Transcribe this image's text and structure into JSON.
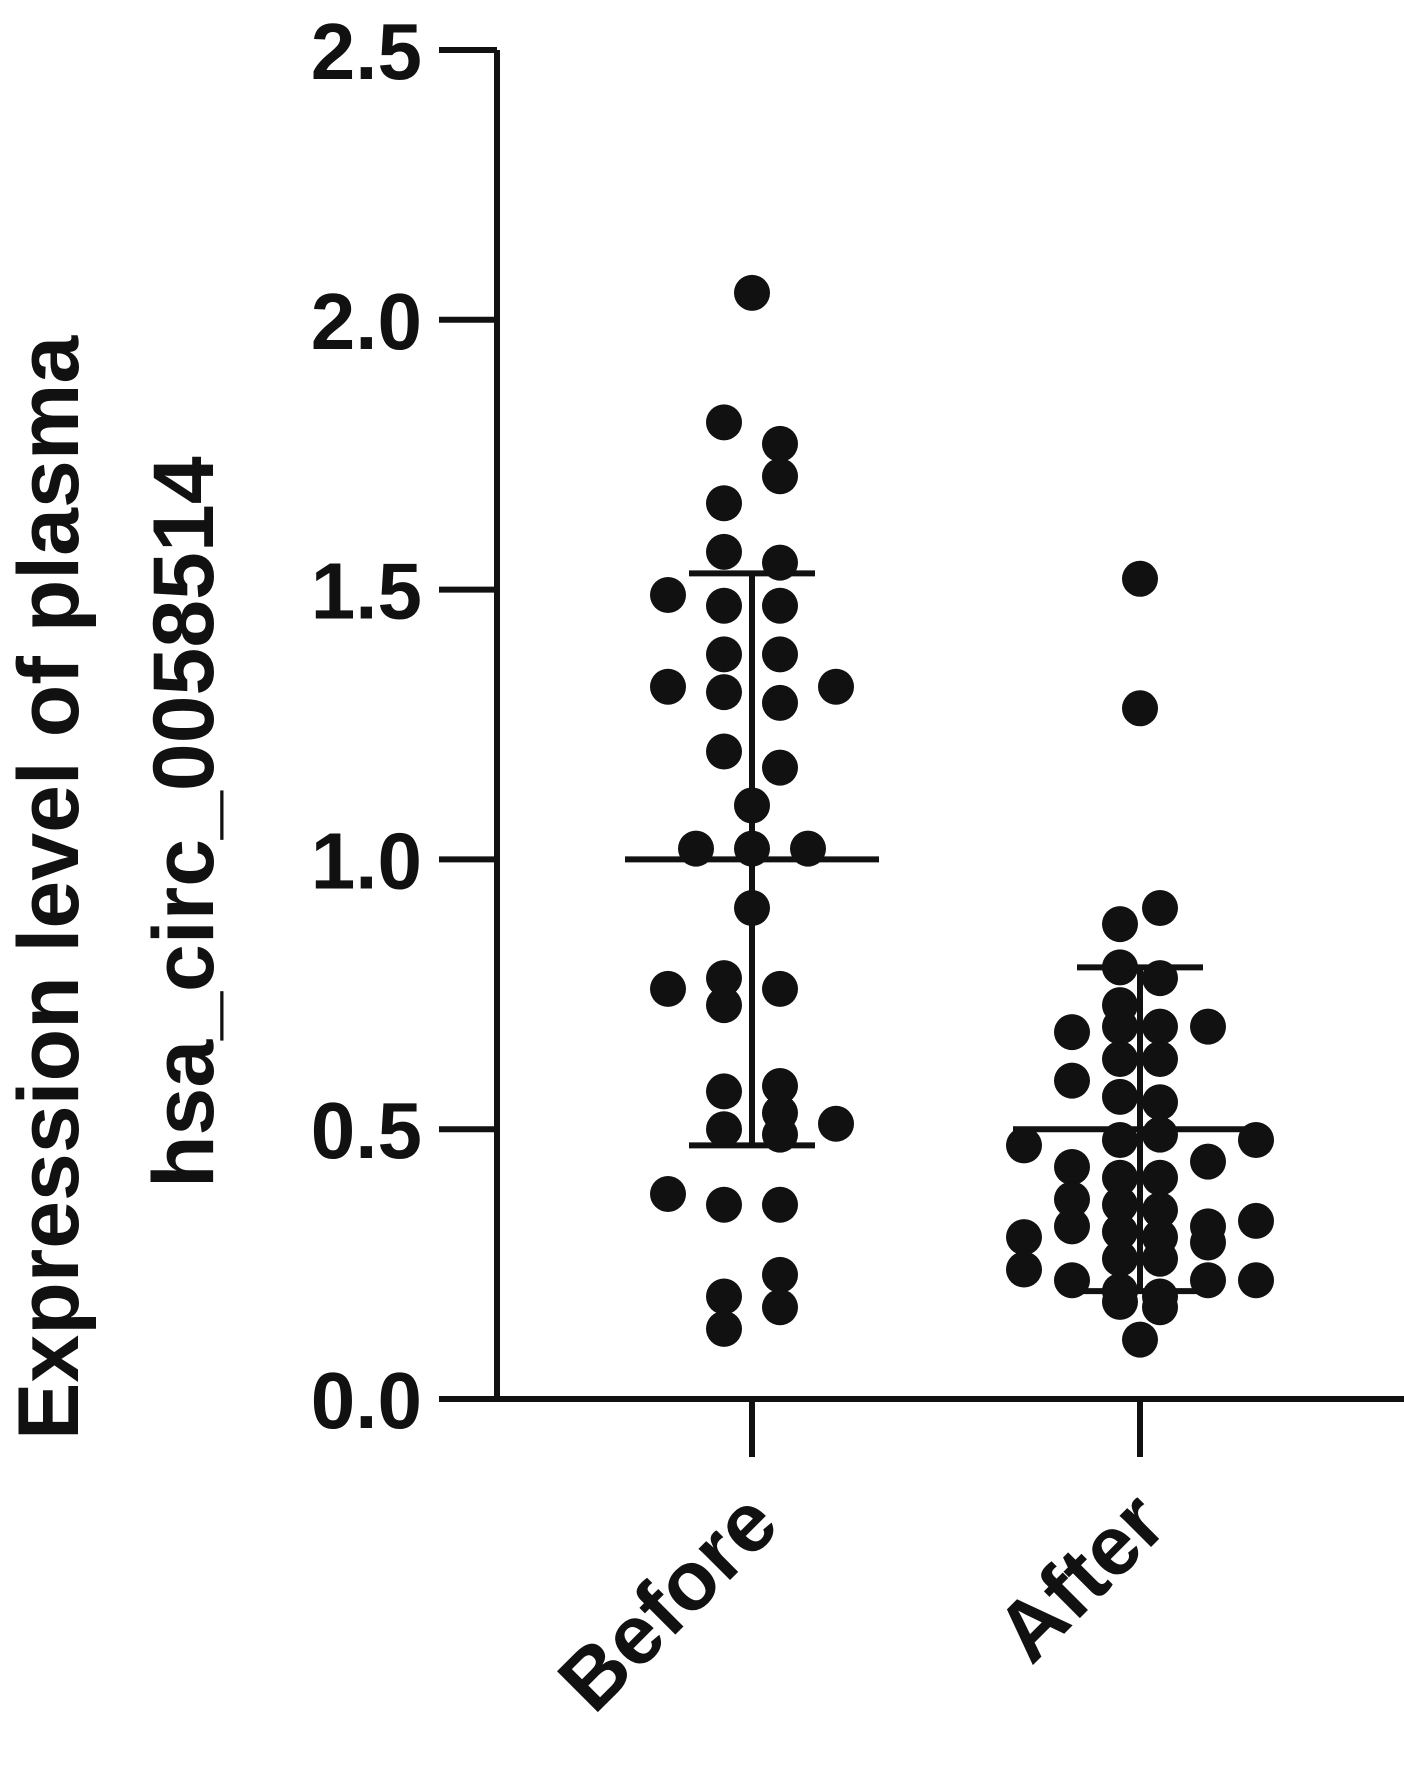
{
  "chart_data": {
    "type": "scatter",
    "title": "",
    "ylabel": [
      "Expression level of plasma",
      "hsa_circ_0058514"
    ],
    "xlabel": "",
    "ylim": [
      0,
      2.5
    ],
    "yticks": [
      0.0,
      0.5,
      1.0,
      1.5,
      2.0,
      2.5
    ],
    "ytick_labels": [
      "0.0",
      "0.5",
      "1.0",
      "1.5",
      "2.0",
      "2.5"
    ],
    "categories": [
      "Before",
      "After"
    ],
    "grid": false,
    "legend": "none",
    "marker_color": "#111111",
    "series": [
      {
        "category": "Before",
        "mean": 1.0,
        "sd_upper": 1.53,
        "sd_lower": 0.47,
        "points": [
          {
            "offset": 0,
            "y": 2.05
          },
          {
            "offset": -0.07,
            "y": 1.81
          },
          {
            "offset": 0.07,
            "y": 1.77
          },
          {
            "offset": 0.07,
            "y": 1.71
          },
          {
            "offset": -0.07,
            "y": 1.66
          },
          {
            "offset": -0.07,
            "y": 1.57
          },
          {
            "offset": 0.07,
            "y": 1.55
          },
          {
            "offset": -0.21,
            "y": 1.49
          },
          {
            "offset": -0.07,
            "y": 1.47
          },
          {
            "offset": 0.07,
            "y": 1.47
          },
          {
            "offset": -0.07,
            "y": 1.38
          },
          {
            "offset": 0.07,
            "y": 1.38
          },
          {
            "offset": -0.21,
            "y": 1.32
          },
          {
            "offset": 0.21,
            "y": 1.32
          },
          {
            "offset": -0.07,
            "y": 1.31
          },
          {
            "offset": 0.07,
            "y": 1.29
          },
          {
            "offset": -0.07,
            "y": 1.2
          },
          {
            "offset": 0.07,
            "y": 1.17
          },
          {
            "offset": 0,
            "y": 1.1
          },
          {
            "offset": -0.14,
            "y": 1.02
          },
          {
            "offset": 0,
            "y": 1.02
          },
          {
            "offset": 0.14,
            "y": 1.02
          },
          {
            "offset": 0,
            "y": 0.91
          },
          {
            "offset": -0.07,
            "y": 0.78
          },
          {
            "offset": -0.21,
            "y": 0.76
          },
          {
            "offset": 0.07,
            "y": 0.76
          },
          {
            "offset": -0.07,
            "y": 0.73
          },
          {
            "offset": -0.07,
            "y": 0.57
          },
          {
            "offset": 0.07,
            "y": 0.58
          },
          {
            "offset": 0.07,
            "y": 0.53
          },
          {
            "offset": 0.21,
            "y": 0.51
          },
          {
            "offset": -0.07,
            "y": 0.5
          },
          {
            "offset": 0.07,
            "y": 0.49
          },
          {
            "offset": -0.21,
            "y": 0.38
          },
          {
            "offset": -0.07,
            "y": 0.36
          },
          {
            "offset": 0.07,
            "y": 0.36
          },
          {
            "offset": 0.07,
            "y": 0.23
          },
          {
            "offset": -0.07,
            "y": 0.19
          },
          {
            "offset": 0.07,
            "y": 0.17
          },
          {
            "offset": -0.07,
            "y": 0.13
          }
        ]
      },
      {
        "category": "After",
        "mean": 0.5,
        "sd_upper": 0.8,
        "sd_lower": 0.2,
        "points": [
          {
            "offset": 0,
            "y": 1.52
          },
          {
            "offset": 0,
            "y": 1.28
          },
          {
            "offset": 0.05,
            "y": 0.91
          },
          {
            "offset": -0.05,
            "y": 0.88
          },
          {
            "offset": -0.05,
            "y": 0.8
          },
          {
            "offset": 0.05,
            "y": 0.78
          },
          {
            "offset": -0.05,
            "y": 0.73
          },
          {
            "offset": -0.17,
            "y": 0.68
          },
          {
            "offset": 0.17,
            "y": 0.69
          },
          {
            "offset": -0.05,
            "y": 0.69
          },
          {
            "offset": 0.05,
            "y": 0.69
          },
          {
            "offset": -0.05,
            "y": 0.63
          },
          {
            "offset": 0.05,
            "y": 0.63
          },
          {
            "offset": -0.17,
            "y": 0.59
          },
          {
            "offset": -0.05,
            "y": 0.56
          },
          {
            "offset": 0.05,
            "y": 0.55
          },
          {
            "offset": -0.05,
            "y": 0.48
          },
          {
            "offset": 0.05,
            "y": 0.49
          },
          {
            "offset": -0.29,
            "y": 0.47
          },
          {
            "offset": 0.29,
            "y": 0.48
          },
          {
            "offset": -0.17,
            "y": 0.43
          },
          {
            "offset": 0.17,
            "y": 0.44
          },
          {
            "offset": -0.05,
            "y": 0.41
          },
          {
            "offset": 0.05,
            "y": 0.41
          },
          {
            "offset": -0.17,
            "y": 0.37
          },
          {
            "offset": -0.05,
            "y": 0.36
          },
          {
            "offset": 0.05,
            "y": 0.35
          },
          {
            "offset": -0.17,
            "y": 0.32
          },
          {
            "offset": 0.17,
            "y": 0.32
          },
          {
            "offset": 0.29,
            "y": 0.33
          },
          {
            "offset": -0.29,
            "y": 0.3
          },
          {
            "offset": -0.05,
            "y": 0.31
          },
          {
            "offset": 0.05,
            "y": 0.3
          },
          {
            "offset": 0.17,
            "y": 0.29
          },
          {
            "offset": -0.05,
            "y": 0.26
          },
          {
            "offset": 0.05,
            "y": 0.26
          },
          {
            "offset": -0.29,
            "y": 0.24
          },
          {
            "offset": -0.17,
            "y": 0.22
          },
          {
            "offset": 0.17,
            "y": 0.22
          },
          {
            "offset": 0.29,
            "y": 0.22
          },
          {
            "offset": -0.05,
            "y": 0.2
          },
          {
            "offset": 0.05,
            "y": 0.19
          },
          {
            "offset": -0.05,
            "y": 0.18
          },
          {
            "offset": 0.05,
            "y": 0.17
          },
          {
            "offset": 0,
            "y": 0.11
          }
        ]
      }
    ]
  }
}
